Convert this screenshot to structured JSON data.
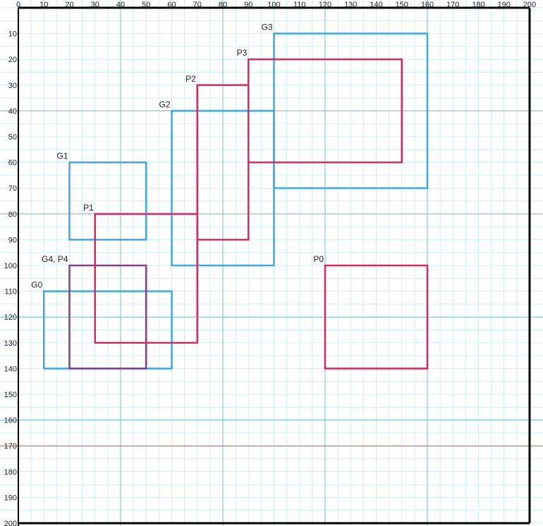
{
  "chart_data": {
    "type": "diagram",
    "x_range": [
      0,
      200
    ],
    "y_range": [
      0,
      200
    ],
    "x_ticks": [
      0,
      10,
      20,
      30,
      40,
      50,
      60,
      70,
      80,
      90,
      100,
      110,
      120,
      130,
      140,
      150,
      160,
      170,
      180,
      190,
      200
    ],
    "y_ticks": [
      10,
      20,
      30,
      40,
      50,
      60,
      70,
      80,
      90,
      100,
      110,
      120,
      130,
      140,
      150,
      160,
      170,
      180,
      190,
      200
    ],
    "minor_grid_step": 5,
    "major_grid_step": 40,
    "horizontal_marker_y": 170,
    "colors": {
      "ground_truth": "#3aa8e8",
      "prediction": "#e0245e",
      "overlap": "#8a3c8c",
      "minor_grid": "#cdeff5",
      "major_grid": "#6cc3c9",
      "marker": "#d9534f",
      "frame": "#000000"
    },
    "boxes": [
      {
        "label": "G0",
        "kind": "ground_truth",
        "x1": 10,
        "y1": 110,
        "x2": 60,
        "y2": 140
      },
      {
        "label": "G1",
        "kind": "ground_truth",
        "x1": 20,
        "y1": 60,
        "x2": 50,
        "y2": 90
      },
      {
        "label": "G2",
        "kind": "ground_truth",
        "x1": 60,
        "y1": 40,
        "x2": 100,
        "y2": 100
      },
      {
        "label": "G3",
        "kind": "ground_truth",
        "x1": 100,
        "y1": 10,
        "x2": 160,
        "y2": 70
      },
      {
        "label": "G4, P4",
        "kind": "overlap",
        "x1": 20,
        "y1": 100,
        "x2": 50,
        "y2": 140
      },
      {
        "label": "P0",
        "kind": "prediction",
        "x1": 120,
        "y1": 100,
        "x2": 160,
        "y2": 140
      },
      {
        "label": "P1",
        "kind": "prediction",
        "x1": 30,
        "y1": 80,
        "x2": 70,
        "y2": 130
      },
      {
        "label": "P2",
        "kind": "prediction",
        "x1": 70,
        "y1": 30,
        "x2": 90,
        "y2": 90
      },
      {
        "label": "P3",
        "kind": "prediction",
        "x1": 90,
        "y1": 20,
        "x2": 150,
        "y2": 60
      }
    ]
  }
}
